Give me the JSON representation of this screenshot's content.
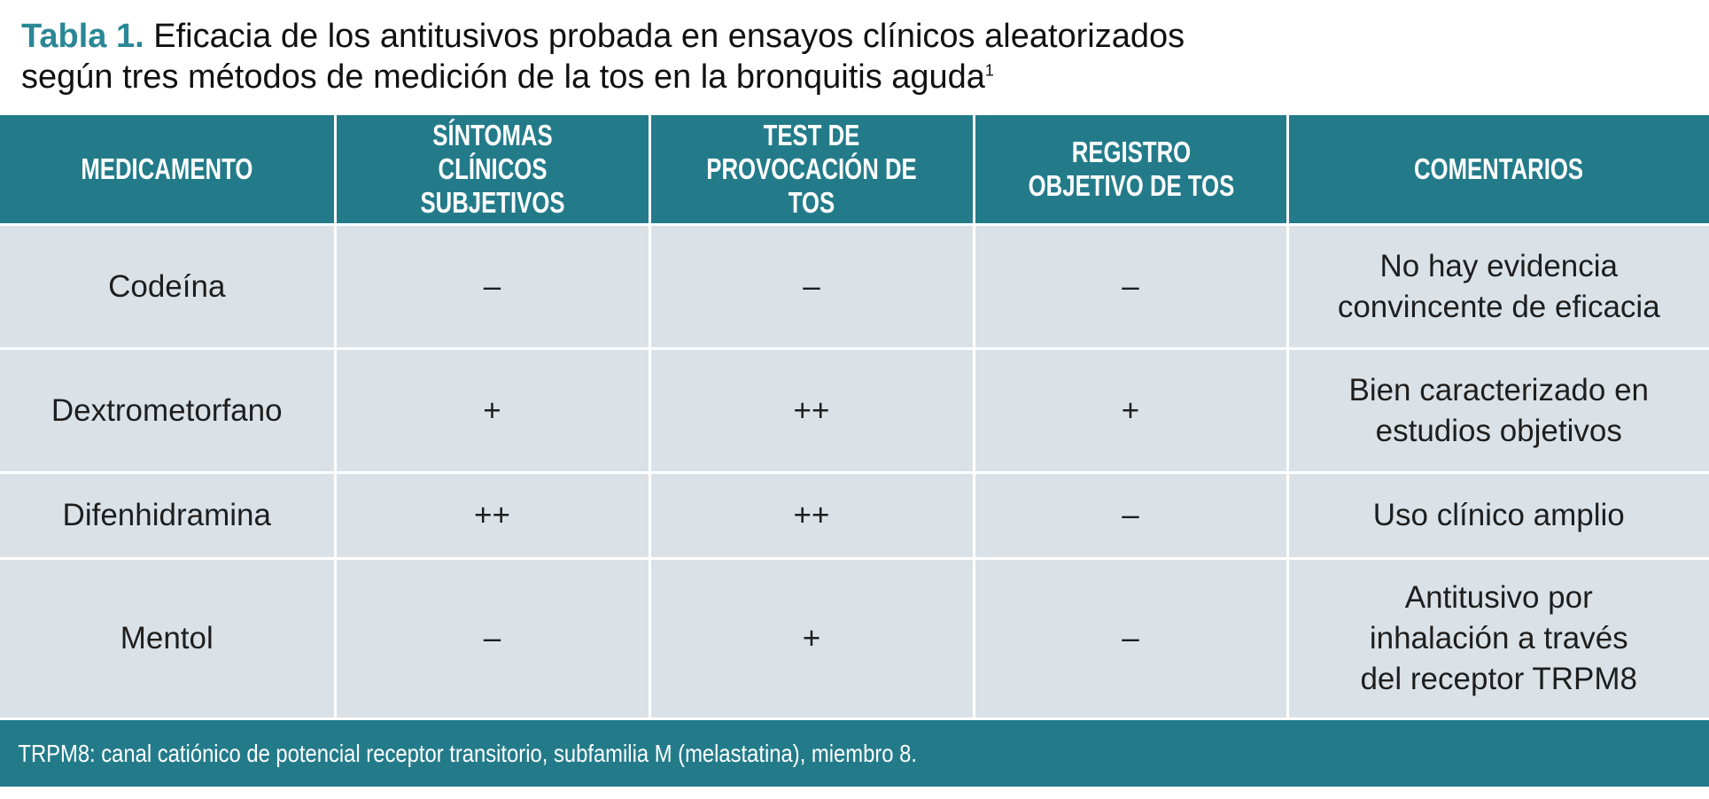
{
  "title": {
    "label": "Tabla 1.",
    "line1": "Eficacia de los antitusivos probada en ensayos clínicos aleatorizados",
    "line2": "según tres métodos de medición de la tos en la bronquitis aguda",
    "superscript": "1"
  },
  "table": {
    "headers": [
      "MEDICAMENTO",
      "SÍNTOMAS CLÍNICOS SUBJETIVOS",
      "TEST DE PROVOCACIÓN DE TOS",
      "REGISTRO OBJETIVO DE TOS",
      "COMENTARIOS"
    ],
    "rows": [
      [
        "Codeína",
        "–",
        "–",
        "–",
        "No hay evidencia convincente de eficacia"
      ],
      [
        "Dextrometorfano",
        "+",
        "++",
        "+",
        "Bien caracterizado en estudios objetivos"
      ],
      [
        "Difenhidramina",
        "++",
        "++",
        "–",
        "Uso clínico amplio"
      ],
      [
        "Mentol",
        "–",
        "+",
        "–",
        "Antitusivo por inhalación a través del receptor TRPM8"
      ]
    ]
  },
  "footer": "TRPM8: canal catiónico de potencial receptor transitorio, subfamilia M (melastatina), miembro 8.",
  "colors": {
    "header": "#237b8a",
    "body": "#dae2e8",
    "title_accent": "#2a8796"
  }
}
